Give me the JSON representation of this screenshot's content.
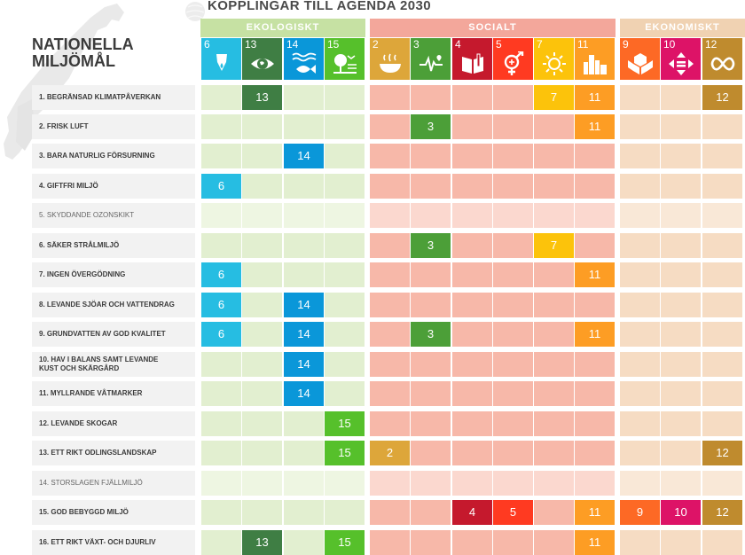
{
  "header": {
    "title": "KOPPLINGAR TILL AGENDA 2030",
    "section_title_line1": "NATIONELLA",
    "section_title_line2": "MILJÖMÅL"
  },
  "groups": [
    {
      "key": "eko",
      "label": "EKOLOGISKT",
      "color": "#c6e1a3",
      "cell": "#e2efd0",
      "cell_light": "#eef6e2"
    },
    {
      "key": "soc",
      "label": "SOCIALT",
      "color": "#f3a79b",
      "cell": "#f7b8a9",
      "cell_light": "#fbd8cf"
    },
    {
      "key": "ekon",
      "label": "EKONOMISKT",
      "color": "#f0d2b2",
      "cell": "#f6dcc3",
      "cell_light": "#f9e8d7"
    }
  ],
  "goals": [
    {
      "n": "6",
      "group": "eko",
      "color": "#26bde2",
      "icon": "water-drop-icon"
    },
    {
      "n": "13",
      "group": "eko",
      "color": "#3f7e44",
      "icon": "eye-globe-icon"
    },
    {
      "n": "14",
      "group": "eko",
      "color": "#0a97d9",
      "icon": "fish-waves-icon"
    },
    {
      "n": "15",
      "group": "eko",
      "color": "#56c02b",
      "icon": "tree-bird-icon"
    },
    {
      "n": "2",
      "group": "soc",
      "color": "#dda63a",
      "icon": "bowl-icon"
    },
    {
      "n": "3",
      "group": "soc",
      "color": "#4c9f38",
      "icon": "heartbeat-icon"
    },
    {
      "n": "4",
      "group": "soc",
      "color": "#c5192d",
      "icon": "book-pencil-icon"
    },
    {
      "n": "5",
      "group": "soc",
      "color": "#ff3a21",
      "icon": "gender-icon"
    },
    {
      "n": "7",
      "group": "soc",
      "color": "#fcc30b",
      "icon": "sun-icon"
    },
    {
      "n": "11",
      "group": "soc",
      "color": "#fd9d24",
      "icon": "city-icon"
    },
    {
      "n": "9",
      "group": "ekon",
      "color": "#fd6925",
      "icon": "cubes-icon"
    },
    {
      "n": "10",
      "group": "ekon",
      "color": "#dd1367",
      "icon": "equality-icon"
    },
    {
      "n": "12",
      "group": "ekon",
      "color": "#bf8b2e",
      "icon": "infinity-icon"
    }
  ],
  "rows": [
    {
      "label": "1. BEGRÄNSAD KLIMATPÅVERKAN",
      "light": false,
      "marks": [
        "13",
        "7",
        "11",
        "12"
      ]
    },
    {
      "label": "2. FRISK LUFT",
      "light": false,
      "marks": [
        "3",
        "11"
      ]
    },
    {
      "label": "3. BARA NATURLIG FÖRSURNING",
      "light": false,
      "marks": [
        "14"
      ]
    },
    {
      "label": "4. GIFTFRI MILJÖ",
      "light": false,
      "marks": [
        "6"
      ]
    },
    {
      "label": "5. SKYDDANDE OZONSKIKT",
      "light": true,
      "marks": []
    },
    {
      "label": "6. SÄKER STRÅLMILJÖ",
      "light": false,
      "marks": [
        "3",
        "7"
      ]
    },
    {
      "label": "7. INGEN ÖVERGÖDNING",
      "light": false,
      "marks": [
        "6",
        "11"
      ]
    },
    {
      "label": "8. LEVANDE SJÖAR OCH VATTENDRAG",
      "light": false,
      "marks": [
        "6",
        "14"
      ]
    },
    {
      "label": "9. GRUNDVATTEN AV GOD KVALITET",
      "light": false,
      "marks": [
        "6",
        "14",
        "3",
        "11"
      ]
    },
    {
      "label": "10. HAV I BALANS SAMT LEVANDE\nKUST OCH SKÄRGÅRD",
      "light": false,
      "marks": [
        "14"
      ]
    },
    {
      "label": "11. MYLLRANDE VÅTMARKER",
      "light": false,
      "marks": [
        "14"
      ]
    },
    {
      "label": "12. LEVANDE SKOGAR",
      "light": false,
      "marks": [
        "15"
      ]
    },
    {
      "label": "13. ETT RIKT ODLINGSLANDSKAP",
      "light": false,
      "marks": [
        "15",
        "2",
        "12"
      ]
    },
    {
      "label": "14. STORSLAGEN FJÄLLMILJÖ",
      "light": true,
      "marks": []
    },
    {
      "label": "15. GOD BEBYGGD MILJÖ",
      "light": false,
      "marks": [
        "4",
        "5",
        "11",
        "9",
        "10",
        "12"
      ]
    },
    {
      "label": "16. ETT RIKT VÄXT- OCH DJURLIV",
      "light": false,
      "marks": [
        "13",
        "15",
        "11"
      ]
    }
  ]
}
